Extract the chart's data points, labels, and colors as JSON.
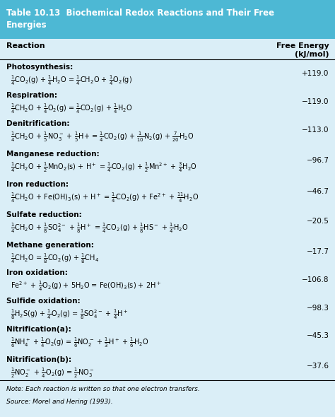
{
  "title": "Table 10.13  Biochemical Redox Reactions and Their Free\nEnergies",
  "title_bg": "#4db8d4",
  "title_color": "white",
  "header_col1": "Reaction",
  "header_col2": "Free Energy\n(kJ/mol)",
  "bg_color": "#daeef7",
  "rows": [
    {
      "category": "Photosynthesis:",
      "equation": "$\\frac{1}{4}$CO$_2$(g) + $\\frac{1}{4}$H$_2$O = $\\frac{1}{4}$CH$_2$O + $\\frac{1}{4}$O$_2$(g)",
      "energy": "+119.0"
    },
    {
      "category": "Respiration:",
      "equation": "$\\frac{1}{4}$CH$_2$O + $\\frac{1}{4}$O$_2$(g) = $\\frac{1}{4}$CO$_2$(g) + $\\frac{1}{4}$H$_2$O",
      "energy": "−119.0"
    },
    {
      "category": "Denitrification:",
      "equation": "$\\frac{1}{4}$CH$_2$O + $\\frac{1}{5}$NO$_3^-$ + $\\frac{1}{5}$H+ = $\\frac{1}{4}$CO$_2$(g) + $\\frac{1}{10}$N$_2$(g) + $\\frac{7}{20}$H$_2$O",
      "energy": "−113.0"
    },
    {
      "category": "Manganese reduction:",
      "equation": "$\\frac{1}{4}$CH$_2$O + $\\frac{1}{2}$MnO$_2$(s) + H$^+$ = $\\frac{1}{4}$CO$_2$(g) + $\\frac{1}{2}$Mn$^{2+}$ + $\\frac{3}{4}$H$_2$O",
      "energy": "−96.7"
    },
    {
      "category": "Iron reduction:",
      "equation": "$\\frac{1}{4}$CH$_2$O + Fe(OH)$_3$(s) + H$^+$ = $\\frac{1}{4}$CO$_2$(g) + Fe$^{2+}$ + $\\frac{11}{4}$H$_2$O",
      "energy": "−46.7"
    },
    {
      "category": "Sulfate reduction:",
      "equation": "$\\frac{1}{4}$CH$_2$O + $\\frac{1}{8}$SO$_4^{2-}$ + $\\frac{1}{8}$H$^+$ = $\\frac{1}{4}$CO$_2$(g) + $\\frac{1}{8}$HS$^-$ + $\\frac{1}{4}$H$_2$O",
      "energy": "−20.5"
    },
    {
      "category": "Methane generation:",
      "equation": "$\\frac{1}{4}$CH$_2$O = $\\frac{1}{8}$CO$_2$(g) + $\\frac{1}{8}$CH$_4$",
      "energy": "−17.7"
    },
    {
      "category": "Iron oxidation:",
      "equation": "Fe$^{2+}$ + $\\frac{1}{4}$O$_2$(g) + 5H$_2$O = Fe(OH)$_3$(s) + 2H$^+$",
      "energy": "−106.8"
    },
    {
      "category": "Sulfide oxidation:",
      "equation": "$\\frac{1}{8}$H$_2$S(g) + $\\frac{1}{4}$O$_2$(g) = $\\frac{1}{8}$SO$_4^{2-}$ + $\\frac{1}{4}$H$^+$",
      "energy": "−98.3"
    },
    {
      "category": "Nitrification(a):",
      "equation": "$\\frac{1}{6}$NH$_4^+$ + $\\frac{1}{4}$O$_2$(g) = $\\frac{1}{6}$NO$_2^-$ + $\\frac{1}{3}$H$^+$ + $\\frac{1}{6}$H$_2$O",
      "energy": "−45.3"
    },
    {
      "category": "Nitrification(b):",
      "equation": "$\\frac{1}{2}$NO$_2^-$ + $\\frac{1}{4}$O$_2$(g) = $\\frac{1}{2}$NO$_3^-$",
      "energy": "−37.6"
    }
  ],
  "note": "Note: Each reaction is written so that one electron transfers.",
  "source": "Source: Morel and Hering (1993)."
}
